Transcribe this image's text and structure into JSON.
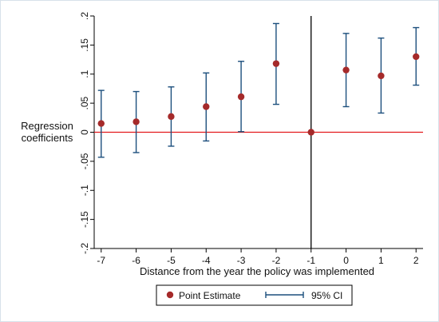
{
  "chart_data": {
    "type": "scatter",
    "ylabel": [
      "Regression",
      "coefficients"
    ],
    "xlabel": "Distance from the year the policy was implemented",
    "x": [
      -7,
      -6,
      -5,
      -4,
      -3,
      -2,
      -1,
      0,
      1,
      2
    ],
    "x_tick_labels": [
      "-7",
      "-6",
      "-5",
      "-4",
      "-3",
      "-2",
      "-1",
      "0",
      "1",
      "2"
    ],
    "xlim": [
      -7.2,
      2.2
    ],
    "ylim": [
      -0.2,
      0.2
    ],
    "y_ticks": [
      -0.2,
      -0.15,
      -0.1,
      -0.05,
      0,
      0.05,
      0.1,
      0.15,
      0.2
    ],
    "y_tick_labels": [
      "-.2",
      "-.15",
      "-.1",
      "-.05",
      "0",
      ".05",
      ".1",
      ".15",
      ".2"
    ],
    "series": [
      {
        "name": "Point Estimate",
        "values": [
          0.015,
          0.018,
          0.027,
          0.044,
          0.061,
          0.118,
          0.0,
          0.107,
          0.097,
          0.13
        ]
      },
      {
        "name": "95% CI",
        "lower": [
          -0.043,
          -0.035,
          -0.024,
          -0.015,
          0.001,
          0.048,
          null,
          0.044,
          0.033,
          0.081
        ],
        "upper": [
          0.072,
          0.07,
          0.078,
          0.102,
          0.122,
          0.187,
          null,
          0.17,
          0.162,
          0.18
        ]
      }
    ],
    "reference_lines": {
      "horizontal_y": 0,
      "vertical_x": -1
    },
    "grid": false,
    "legend_position": "bottom",
    "colors": {
      "point": "#a52a2a",
      "ci": "#1c4f7d",
      "zero_line": "#e31a1c",
      "vertical_line": "#000000"
    }
  }
}
